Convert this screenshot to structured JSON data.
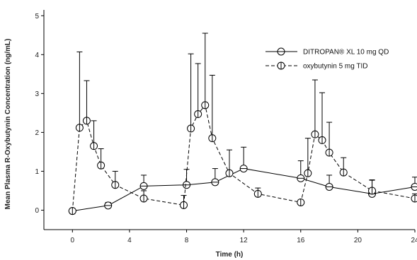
{
  "chart_data": {
    "type": "line",
    "title": "",
    "xlabel": "Time (h)",
    "ylabel": "Mean Plasma R-Oxybutynin Concentration (ng/mL)",
    "xlim": [
      -2,
      24
    ],
    "ylim": [
      -0.5,
      5.15
    ],
    "xticks": [
      0,
      4,
      8,
      12,
      16,
      20,
      24
    ],
    "yticks": [
      0,
      1,
      2,
      3,
      4,
      5
    ],
    "grid": false,
    "legend_position": "top-right",
    "series": [
      {
        "name": "DITROPAN® XL 10 mg QD",
        "line_style": "solid",
        "marker": "circle-horizontal-line",
        "color": "#000000",
        "x": [
          0,
          2.5,
          5,
          8,
          10,
          12,
          16,
          18,
          21,
          24
        ],
        "y": [
          -0.02,
          0.12,
          0.62,
          0.65,
          0.72,
          1.07,
          0.82,
          0.6,
          0.42,
          0.6
        ],
        "error_upper": [
          0,
          0.08,
          0.28,
          0.4,
          0.35,
          0.55,
          0.45,
          0.3,
          0.35,
          0.25
        ]
      },
      {
        "name": "oxybutynin 5 mg TID",
        "line_style": "dashed",
        "marker": "circle-vertical-line",
        "color": "#000000",
        "x": [
          0,
          0.5,
          1,
          1.5,
          2,
          3,
          5,
          7.8,
          8.3,
          8.8,
          9.3,
          9.8,
          11,
          13,
          16,
          16.5,
          17,
          17.5,
          18,
          19,
          21,
          24
        ],
        "y": [
          -0.02,
          2.12,
          2.3,
          1.65,
          1.15,
          0.65,
          0.3,
          0.13,
          2.1,
          2.47,
          2.7,
          1.85,
          0.95,
          0.42,
          0.2,
          0.95,
          1.95,
          1.8,
          1.48,
          0.97,
          0.5,
          0.3
        ],
        "error_upper": [
          0,
          1.95,
          1.03,
          0.65,
          0.43,
          0.35,
          0.2,
          0.25,
          1.92,
          1.3,
          1.85,
          1.62,
          0.6,
          0.15,
          0.06,
          0.9,
          1.4,
          1.22,
          0.78,
          0.38,
          0.28,
          0.12
        ]
      }
    ]
  }
}
